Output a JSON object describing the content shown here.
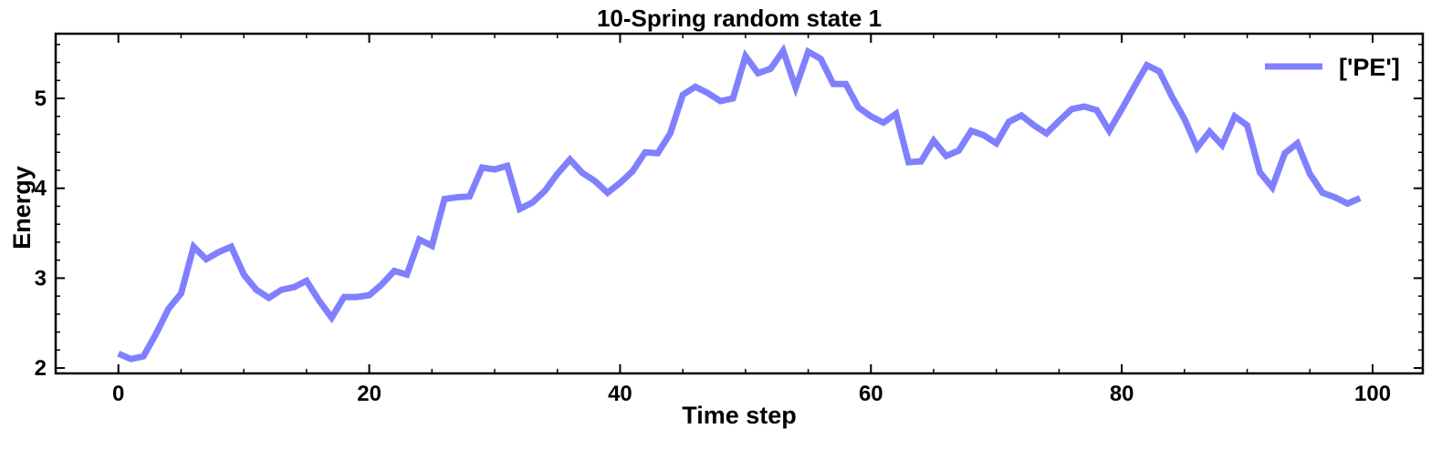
{
  "chart_data": {
    "type": "line",
    "title": "10-Spring random state 1",
    "xlabel": "Time step",
    "ylabel": "Energy",
    "xlim": [
      -5,
      104
    ],
    "ylim": [
      1.94,
      5.72
    ],
    "xticks": [
      0,
      20,
      40,
      60,
      80,
      100
    ],
    "yticks": [
      2,
      3,
      4,
      5
    ],
    "grid": false,
    "legend_position": "top-right",
    "series": [
      {
        "name": "['PE']",
        "color": "#8080ff",
        "x": [
          0,
          1,
          2,
          3,
          4,
          5,
          6,
          7,
          8,
          9,
          10,
          11,
          12,
          13,
          14,
          15,
          16,
          17,
          18,
          19,
          20,
          21,
          22,
          23,
          24,
          25,
          26,
          27,
          28,
          29,
          30,
          31,
          32,
          33,
          34,
          35,
          36,
          37,
          38,
          39,
          40,
          41,
          42,
          43,
          44,
          45,
          46,
          47,
          48,
          49,
          50,
          51,
          52,
          53,
          54,
          55,
          56,
          57,
          58,
          59,
          60,
          61,
          62,
          63,
          64,
          65,
          66,
          67,
          68,
          69,
          70,
          71,
          72,
          73,
          74,
          75,
          76,
          77,
          78,
          79,
          80,
          81,
          82,
          83,
          84,
          85,
          86,
          87,
          88,
          89,
          90,
          91,
          92,
          93,
          94,
          95,
          96,
          97,
          98,
          99
        ],
        "values": [
          2.16,
          2.1,
          2.13,
          2.38,
          2.66,
          2.83,
          3.35,
          3.21,
          3.29,
          3.35,
          3.04,
          2.87,
          2.78,
          2.87,
          2.9,
          2.97,
          2.75,
          2.56,
          2.79,
          2.79,
          2.81,
          2.93,
          3.08,
          3.04,
          3.43,
          3.36,
          3.88,
          3.9,
          3.91,
          4.23,
          4.21,
          4.25,
          3.77,
          3.84,
          3.97,
          4.16,
          4.32,
          4.17,
          4.08,
          3.95,
          4.06,
          4.19,
          4.4,
          4.39,
          4.61,
          5.04,
          5.13,
          5.06,
          4.97,
          5.0,
          5.47,
          5.28,
          5.33,
          5.53,
          5.12,
          5.52,
          5.44,
          5.16,
          5.16,
          4.9,
          4.8,
          4.73,
          4.83,
          4.29,
          4.3,
          4.53,
          4.36,
          4.42,
          4.64,
          4.59,
          4.5,
          4.74,
          4.81,
          4.7,
          4.61,
          4.75,
          4.88,
          4.91,
          4.87,
          4.64,
          4.88,
          5.13,
          5.37,
          5.3,
          5.02,
          4.77,
          4.45,
          4.63,
          4.48,
          4.8,
          4.7,
          4.18,
          4.01,
          4.39,
          4.5,
          4.16,
          3.95,
          3.9,
          3.83,
          3.89
        ]
      }
    ]
  }
}
